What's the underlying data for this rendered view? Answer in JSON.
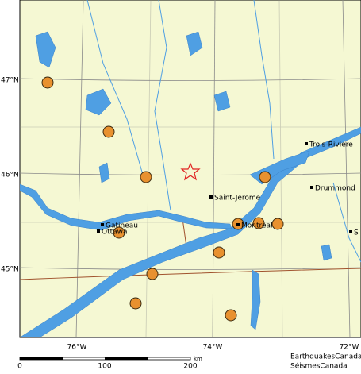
{
  "lat_labels": [
    "47°N",
    "46°N",
    "45°N"
  ],
  "lon_labels": [
    "76°W",
    "74°W",
    "72°W"
  ],
  "cities": [
    "Trois-Riviere",
    "Drummond",
    "Saint-Jerome",
    "Montreal",
    "Gatineau",
    "Ottawa",
    "S"
  ],
  "scale": {
    "ticks": [
      0,
      100,
      200
    ],
    "unit": "km"
  },
  "credit": [
    "EarthquakesCanada",
    "SéismesCanada"
  ]
}
